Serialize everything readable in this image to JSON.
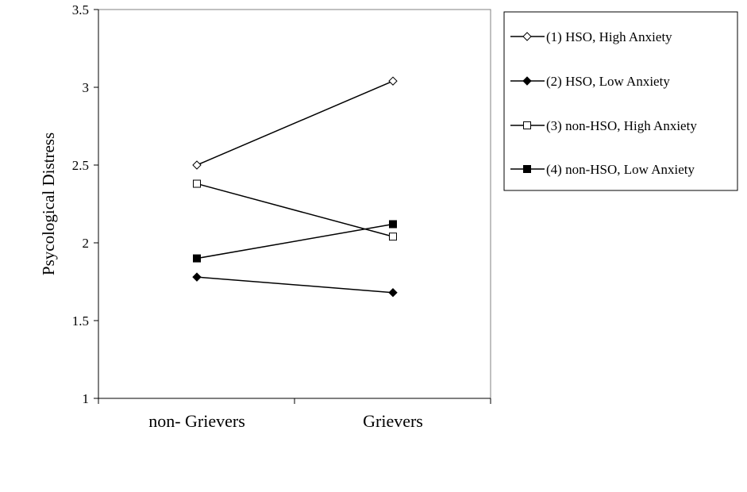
{
  "chart_data": {
    "type": "line",
    "categories": [
      "non- Grievers",
      "Grievers"
    ],
    "ylabel": "Psycological Distress",
    "ylim": [
      1,
      3.5
    ],
    "yticks": [
      "1",
      "1.5",
      "2",
      "2.5",
      "3",
      "3.5"
    ],
    "ytick_values": [
      1,
      1.5,
      2,
      2.5,
      3,
      3.5
    ],
    "grid": false,
    "legend_position": "right",
    "series": [
      {
        "name": "(1) HSO, High Anxiety",
        "marker": "diamond-open",
        "values": [
          2.5,
          3.04
        ]
      },
      {
        "name": "(2) HSO, Low Anxiety",
        "marker": "diamond-filled",
        "values": [
          1.78,
          1.68
        ]
      },
      {
        "name": "(3) non-HSO, High Anxiety",
        "marker": "square-open",
        "values": [
          2.38,
          2.04
        ]
      },
      {
        "name": "(4) non-HSO, Low Anxiety",
        "marker": "square-filled",
        "values": [
          1.9,
          2.12
        ]
      }
    ]
  }
}
